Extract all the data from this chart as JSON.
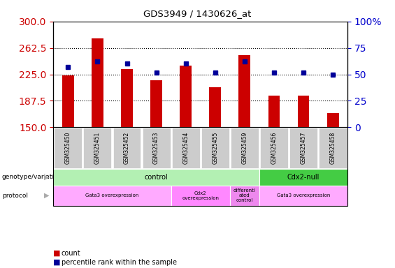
{
  "title": "GDS3949 / 1430626_at",
  "samples": [
    "GSM325450",
    "GSM325451",
    "GSM325452",
    "GSM325453",
    "GSM325454",
    "GSM325455",
    "GSM325459",
    "GSM325456",
    "GSM325457",
    "GSM325458"
  ],
  "counts": [
    224,
    276,
    232,
    217,
    237,
    207,
    252,
    195,
    195,
    170
  ],
  "percentile_ranks": [
    57,
    62,
    60,
    52,
    60,
    52,
    62,
    52,
    52,
    50
  ],
  "ylim_left": [
    150,
    300
  ],
  "ylim_right": [
    0,
    100
  ],
  "yticks_left": [
    150,
    187.5,
    225,
    262.5,
    300
  ],
  "yticks_right": [
    0,
    25,
    50,
    75,
    100
  ],
  "bar_color": "#cc0000",
  "dot_color": "#000099",
  "genotype_groups": [
    {
      "label": "control",
      "start": 0,
      "end": 7,
      "color": "#b3f0b3"
    },
    {
      "label": "Cdx2-null",
      "start": 7,
      "end": 10,
      "color": "#44cc44"
    }
  ],
  "protocol_groups": [
    {
      "label": "Gata3 overexpression",
      "start": 0,
      "end": 4,
      "color": "#ffaaff"
    },
    {
      "label": "Cdx2\noverexpression",
      "start": 4,
      "end": 6,
      "color": "#ffaaff"
    },
    {
      "label": "differenti\nated\ncontrol",
      "start": 6,
      "end": 7,
      "color": "#ffaaff"
    },
    {
      "label": "Gata3 overexpression",
      "start": 7,
      "end": 10,
      "color": "#ffaaff"
    }
  ],
  "left_tick_color": "#cc0000",
  "right_tick_color": "#0000cc",
  "tick_label_bg": "#cccccc"
}
